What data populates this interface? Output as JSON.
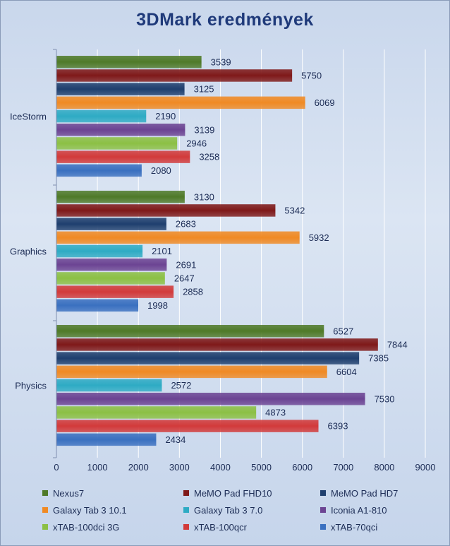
{
  "chart_data": {
    "type": "bar",
    "orientation": "horizontal",
    "title": "3DMark eredmények",
    "xlabel": "",
    "ylabel": "",
    "categories": [
      "IceStorm",
      "Graphics",
      "Physics"
    ],
    "xlim": [
      0,
      9000
    ],
    "x_ticks": [
      "0",
      "1000",
      "2000",
      "3000",
      "4000",
      "5000",
      "6000",
      "7000",
      "8000",
      "9000"
    ],
    "grid": true,
    "legend_position": "bottom",
    "series": [
      {
        "name": "Nexus7",
        "color": "#4f7a28",
        "values": [
          3539,
          3130,
          6527
        ]
      },
      {
        "name": "MeMO Pad FHD10",
        "color": "#7f1919",
        "values": [
          5750,
          5342,
          7844
        ]
      },
      {
        "name": "MeMO Pad HD7",
        "color": "#1f3f6e",
        "values": [
          3125,
          2683,
          7385
        ]
      },
      {
        "name": "Galaxy Tab 3 10.1",
        "color": "#f08a24",
        "values": [
          6069,
          5932,
          6604
        ]
      },
      {
        "name": "Galaxy Tab 3 7.0",
        "color": "#2eabc4",
        "values": [
          2190,
          2101,
          2572
        ]
      },
      {
        "name": "Iconia A1-810",
        "color": "#6c4493",
        "values": [
          3139,
          2691,
          7530
        ]
      },
      {
        "name": "xTAB-100dci 3G",
        "color": "#8cc045",
        "values": [
          2946,
          2647,
          4873
        ]
      },
      {
        "name": "xTAB-100qcr",
        "color": "#d23a3a",
        "values": [
          3258,
          2858,
          6393
        ]
      },
      {
        "name": "xTAB-70qci",
        "color": "#3a70c0",
        "values": [
          2080,
          1998,
          2434
        ]
      }
    ]
  }
}
